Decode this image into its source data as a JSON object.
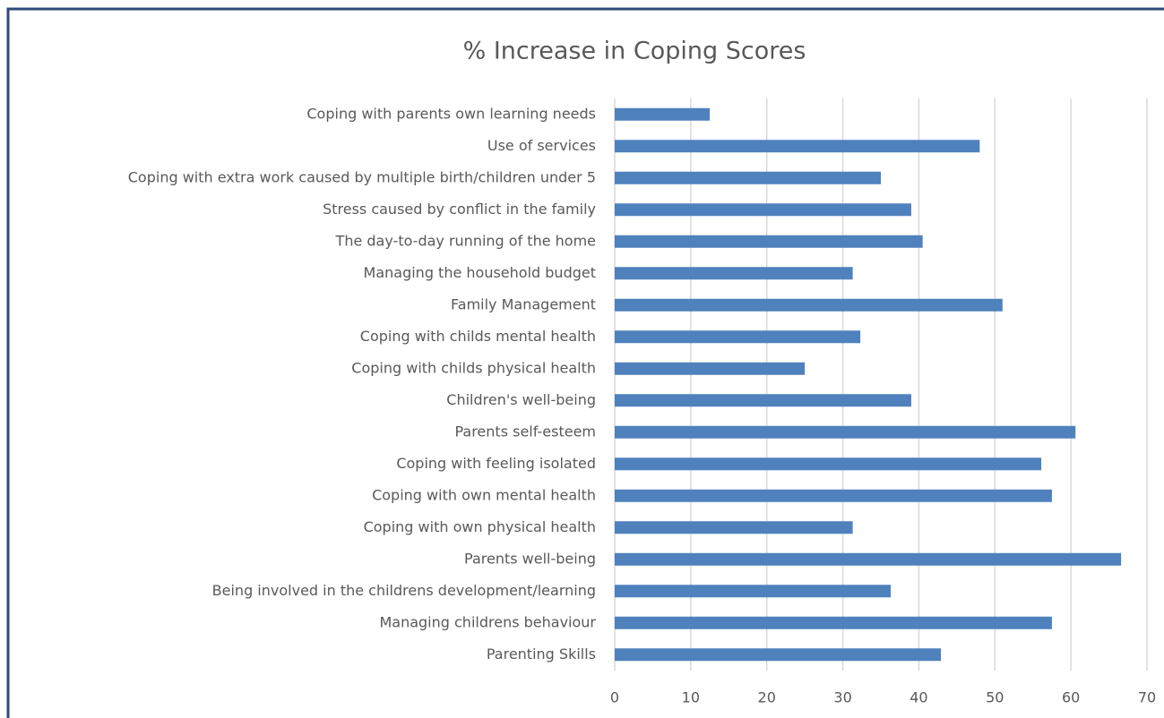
{
  "chart_data": {
    "type": "barh",
    "title": "% Increase in Coping Scores",
    "categories": [
      "Coping with parents own learning needs",
      "Use of services",
      "Coping with extra work caused by multiple birth/children under 5",
      "Stress caused by conflict in the family",
      "The day-to-day running of the home",
      "Managing the household budget",
      "Family Management",
      "Coping with childs mental health",
      "Coping with childs physical health",
      "Children's well-being",
      "Parents self-esteem",
      "Coping with feeling isolated",
      "Coping with own mental health",
      "Coping with own physical health",
      "Parents well-being",
      "Being involved in the childrens development/learning",
      "Managing childrens behaviour",
      "Parenting Skills"
    ],
    "values": [
      12.5,
      48,
      35,
      39,
      40.5,
      31.3,
      51,
      32.3,
      25,
      39,
      60.6,
      56.1,
      57.5,
      31.3,
      66.6,
      36.3,
      57.5,
      42.9
    ],
    "color": "#4f81bd",
    "xlim": [
      0,
      70
    ],
    "xticks": [
      0,
      10,
      20,
      30,
      40,
      50,
      60,
      70
    ],
    "grid": true
  }
}
